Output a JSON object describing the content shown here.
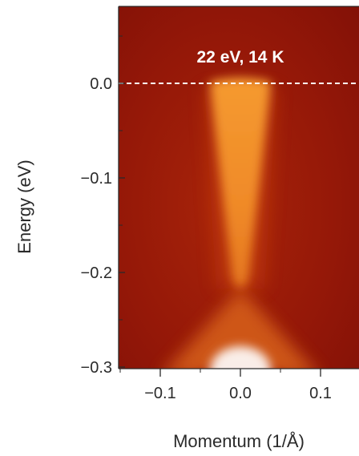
{
  "chart_data": {
    "type": "heatmap",
    "xlabel": "Momentum (1/Å)",
    "ylabel": "Energy (eV)",
    "annotation": "22 eV, 14 K",
    "xlim": [
      -0.155,
      0.155
    ],
    "ylim": [
      -0.3,
      0.085
    ],
    "x_ticks": [
      {
        "value": -0.1,
        "label": "−0.1"
      },
      {
        "value": 0.0,
        "label": "0.0"
      },
      {
        "value": 0.1,
        "label": "0.1"
      }
    ],
    "y_ticks": [
      {
        "value": 0.0,
        "label": "0.0"
      },
      {
        "value": -0.1,
        "label": "−0.1"
      },
      {
        "value": -0.2,
        "label": "−0.2"
      },
      {
        "value": -0.3,
        "label": "−0.3"
      }
    ],
    "reference_line": {
      "axis": "y",
      "value": 0.0,
      "style": "dashed",
      "color": "#ffffff"
    },
    "colormap": [
      "#7a0a05",
      "#a01a08",
      "#c8400c",
      "#e8781a",
      "#f5a040",
      "#fbd08a",
      "#ffffff"
    ],
    "features": [
      {
        "name": "dirac-cone",
        "apex": {
          "x": 0.0,
          "y": -0.17
        },
        "upper_edge": 0.01,
        "description_hidden": true
      },
      {
        "name": "lower-cone",
        "apex": {
          "x": 0.0,
          "y": -0.18
        },
        "extends_to": -0.3
      }
    ]
  }
}
